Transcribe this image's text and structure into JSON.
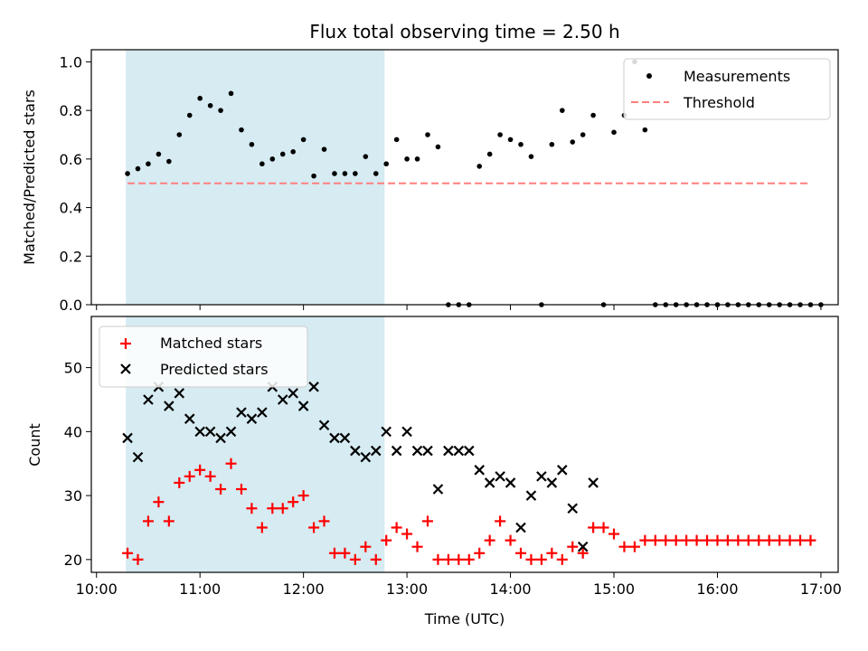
{
  "figure": {
    "title": "Flux total observing time = 2.50 h",
    "xlabel": "Time (UTC)",
    "x_ticks": [
      "10:00",
      "11:00",
      "12:00",
      "13:00",
      "14:00",
      "15:00",
      "16:00",
      "17:00"
    ],
    "shaded_interval": {
      "start": "10:17",
      "end": "12:47",
      "color": "#add8e6"
    }
  },
  "chart_data": [
    {
      "type": "scatter",
      "ylabel": "Matched/Predicted stars",
      "ylim": [
        0,
        1.05
      ],
      "y_ticks": [
        "0.0",
        "0.2",
        "0.4",
        "0.6",
        "0.8",
        "1.0"
      ],
      "legend": {
        "placement": "top-right",
        "entries": [
          "Measurements",
          "Threshold"
        ]
      },
      "series": [
        {
          "name": "Measurements",
          "marker": "dot",
          "color": "#000000",
          "x": [
            "10:18",
            "10:24",
            "10:30",
            "10:36",
            "10:42",
            "10:48",
            "10:54",
            "11:00",
            "11:06",
            "11:12",
            "11:18",
            "11:24",
            "11:30",
            "11:36",
            "11:42",
            "11:48",
            "11:54",
            "12:00",
            "12:06",
            "12:12",
            "12:18",
            "12:24",
            "12:30",
            "12:36",
            "12:42",
            "12:48",
            "12:54",
            "13:00",
            "13:06",
            "13:12",
            "13:18",
            "13:24",
            "13:30",
            "13:36",
            "13:42",
            "13:48",
            "13:54",
            "14:00",
            "14:06",
            "14:12",
            "14:18",
            "14:24",
            "14:30",
            "14:36",
            "14:42",
            "14:48",
            "14:54",
            "15:00",
            "15:06",
            "15:12",
            "15:18",
            "15:24",
            "15:30",
            "15:36",
            "15:42",
            "15:48",
            "15:54",
            "16:00",
            "16:06",
            "16:12",
            "16:18",
            "16:24",
            "16:30",
            "16:36",
            "16:42",
            "16:48",
            "16:54",
            "17:00"
          ],
          "y": [
            0.54,
            0.56,
            0.58,
            0.62,
            0.59,
            0.7,
            0.78,
            0.85,
            0.82,
            0.8,
            0.87,
            0.72,
            0.66,
            0.58,
            0.6,
            0.62,
            0.63,
            0.68,
            0.53,
            0.64,
            0.54,
            0.54,
            0.54,
            0.61,
            0.54,
            0.58,
            0.68,
            0.6,
            0.6,
            0.7,
            0.65,
            0.0,
            0.0,
            0.0,
            0.57,
            0.62,
            0.7,
            0.68,
            0.66,
            0.61,
            0.0,
            0.66,
            0.8,
            0.67,
            0.7,
            0.78,
            0.0,
            0.71,
            0.78,
            1.0,
            0.72,
            0.0,
            0.0,
            0.0,
            0.0,
            0.0,
            0.0,
            0.0,
            0.0,
            0.0,
            0.0,
            0.0,
            0.0,
            0.0,
            0.0,
            0.0,
            0.0,
            0.0
          ]
        },
        {
          "name": "Threshold",
          "style": "dashed",
          "color": "#ff7f7f",
          "x": [
            "10:18",
            "16:53"
          ],
          "y": [
            0.5,
            0.5
          ]
        }
      ]
    },
    {
      "type": "scatter",
      "ylabel": "Count",
      "ylim": [
        18,
        58
      ],
      "y_ticks": [
        "20",
        "30",
        "40",
        "50"
      ],
      "legend": {
        "placement": "top-left",
        "entries": [
          "Matched stars",
          "Predicted stars"
        ]
      },
      "series": [
        {
          "name": "Matched stars",
          "marker": "plus",
          "color": "#ff0000",
          "x": [
            "10:18",
            "10:24",
            "10:30",
            "10:36",
            "10:42",
            "10:48",
            "10:54",
            "11:00",
            "11:06",
            "11:12",
            "11:18",
            "11:24",
            "11:30",
            "11:36",
            "11:42",
            "11:48",
            "11:54",
            "12:00",
            "12:06",
            "12:12",
            "12:18",
            "12:24",
            "12:30",
            "12:36",
            "12:42",
            "12:48",
            "12:54",
            "13:00",
            "13:06",
            "13:12",
            "13:18",
            "13:24",
            "13:30",
            "13:36",
            "13:42",
            "13:48",
            "13:54",
            "14:00",
            "14:06",
            "14:12",
            "14:18",
            "14:24",
            "14:30",
            "14:36",
            "14:42",
            "14:48",
            "14:54",
            "15:00",
            "15:06",
            "15:12",
            "15:18",
            "15:24",
            "15:30",
            "15:36",
            "15:42",
            "15:48",
            "15:54",
            "16:00",
            "16:06",
            "16:12",
            "16:18",
            "16:24",
            "16:30",
            "16:36",
            "16:42",
            "16:48",
            "16:54"
          ],
          "y": [
            21,
            20,
            26,
            29,
            26,
            32,
            33,
            34,
            33,
            31,
            35,
            31,
            28,
            25,
            28,
            28,
            29,
            30,
            25,
            26,
            21,
            21,
            20,
            22,
            20,
            23,
            25,
            24,
            22,
            26,
            20,
            20,
            20,
            20,
            21,
            23,
            26,
            23,
            21,
            20,
            20,
            21,
            20,
            22,
            21,
            25,
            25,
            24,
            22,
            22,
            23,
            23,
            23,
            23,
            23,
            23,
            23,
            23,
            23,
            23,
            23,
            23,
            23,
            23,
            23,
            23,
            23
          ]
        },
        {
          "name": "Predicted stars",
          "marker": "x",
          "color": "#000000",
          "x": [
            "10:18",
            "10:24",
            "10:30",
            "10:36",
            "10:42",
            "10:48",
            "10:54",
            "11:00",
            "11:06",
            "11:12",
            "11:18",
            "11:24",
            "11:30",
            "11:36",
            "11:42",
            "11:48",
            "11:54",
            "12:00",
            "12:06",
            "12:12",
            "12:18",
            "12:24",
            "12:30",
            "12:36",
            "12:42",
            "12:48",
            "12:54",
            "13:00",
            "13:06",
            "13:12",
            "13:18",
            "13:24",
            "13:30",
            "13:36",
            "13:42",
            "13:48",
            "13:54",
            "14:00",
            "14:06",
            "14:12",
            "14:18",
            "14:24",
            "14:30",
            "14:36",
            "14:42",
            "14:48"
          ],
          "y": [
            39,
            36,
            45,
            47,
            44,
            46,
            42,
            40,
            40,
            39,
            40,
            43,
            42,
            43,
            47,
            45,
            46,
            44,
            47,
            41,
            39,
            39,
            37,
            36,
            37,
            40,
            37,
            40,
            37,
            37,
            31,
            37,
            37,
            37,
            34,
            32,
            33,
            32,
            25,
            30,
            33,
            32,
            34,
            28,
            22,
            32
          ]
        }
      ]
    }
  ]
}
